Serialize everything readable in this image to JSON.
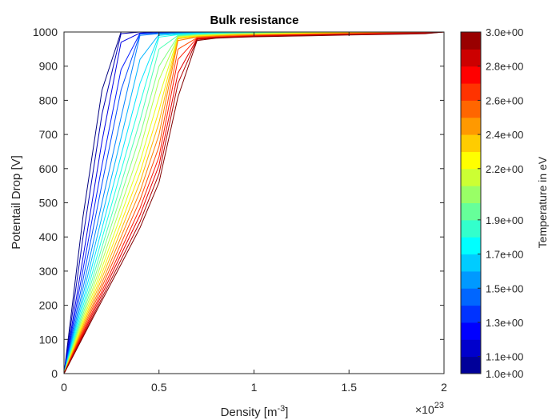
{
  "chart_data": {
    "type": "line",
    "title": "Bulk resistance",
    "xlabel": "Density [m",
    "xlabel_sup": "-3",
    "xlabel_end": "]",
    "x_exponent_base": "×10",
    "x_exponent_power": "23",
    "ylabel": "Potentail Drop [V]",
    "xlim": [
      0,
      2
    ],
    "ylim": [
      0,
      1000
    ],
    "xticks": [
      0,
      0.5,
      1,
      1.5,
      2
    ],
    "xtick_labels": [
      "0",
      "0.5",
      "1",
      "1.5",
      "2"
    ],
    "yticks": [
      0,
      100,
      200,
      300,
      400,
      500,
      600,
      700,
      800,
      900,
      1000
    ],
    "ytick_labels": [
      "0",
      "100",
      "200",
      "300",
      "400",
      "500",
      "600",
      "700",
      "800",
      "900",
      "1000"
    ],
    "grid": false,
    "colorbar": {
      "label": "Temperature in eV",
      "colormap": "jet",
      "range": [
        1.0,
        3.0
      ],
      "levels": 20,
      "ticks": [
        1.0,
        1.1,
        1.3,
        1.5,
        1.7,
        1.9,
        2.2,
        2.4,
        2.6,
        2.8,
        3.0
      ],
      "tick_labels": [
        "1.0e+00",
        "1.1e+00",
        "1.3e+00",
        "1.5e+00",
        "1.7e+00",
        "1.9e+00",
        "2.2e+00",
        "2.4e+00",
        "2.6e+00",
        "2.8e+00",
        "3.0e+00"
      ]
    },
    "x": [
      0,
      0.1,
      0.2,
      0.3,
      0.4,
      0.5,
      0.6,
      0.7,
      0.8,
      0.9,
      1.0,
      1.1,
      1.2,
      1.3,
      1.4,
      1.5,
      1.6,
      1.7,
      1.8,
      1.9,
      2.0
    ],
    "series": [
      {
        "temperature": 1.0,
        "values": [
          0,
          460,
          830,
          1000,
          1000,
          1000,
          1000,
          1000,
          1000,
          1000,
          1000,
          1000,
          1000,
          1000,
          1000,
          1000,
          1000,
          1000,
          1000,
          1000,
          1000
        ]
      },
      {
        "temperature": 1.1,
        "values": [
          0,
          400,
          760,
          995,
          1000,
          1000,
          1000,
          1000,
          1000,
          1000,
          1000,
          1000,
          1000,
          1000,
          1000,
          1000,
          1000,
          1000,
          1000,
          1000,
          1000
        ]
      },
      {
        "temperature": 1.2,
        "values": [
          0,
          340,
          680,
          970,
          997,
          1000,
          1000,
          1000,
          1000,
          1000,
          1000,
          1000,
          1000,
          1000,
          1000,
          1000,
          1000,
          1000,
          1000,
          1000,
          1000
        ]
      },
      {
        "temperature": 1.3,
        "values": [
          0,
          305,
          610,
          890,
          996,
          998,
          999,
          999,
          1000,
          1000,
          1000,
          1000,
          1000,
          1000,
          1000,
          1000,
          1000,
          1000,
          1000,
          1000,
          1000
        ]
      },
      {
        "temperature": 1.4,
        "values": [
          0,
          275,
          555,
          830,
          994,
          997,
          998,
          999,
          999,
          1000,
          1000,
          1000,
          1000,
          1000,
          1000,
          1000,
          1000,
          1000,
          1000,
          1000,
          1000
        ]
      },
      {
        "temperature": 1.5,
        "values": [
          0,
          250,
          500,
          750,
          990,
          995,
          997,
          998,
          999,
          999,
          1000,
          1000,
          1000,
          1000,
          1000,
          1000,
          1000,
          1000,
          1000,
          1000,
          1000
        ]
      },
      {
        "temperature": 1.6,
        "values": [
          0,
          230,
          460,
          690,
          920,
          993,
          996,
          997,
          998,
          999,
          999,
          1000,
          1000,
          1000,
          1000,
          1000,
          1000,
          1000,
          1000,
          1000,
          1000
        ]
      },
      {
        "temperature": 1.7,
        "values": [
          0,
          213,
          425,
          638,
          850,
          990,
          994,
          996,
          997,
          998,
          999,
          999,
          1000,
          1000,
          1000,
          1000,
          1000,
          1000,
          1000,
          1000,
          1000
        ]
      },
      {
        "temperature": 1.8,
        "values": [
          0,
          198,
          395,
          593,
          790,
          985,
          992,
          994,
          996,
          997,
          998,
          999,
          999,
          1000,
          1000,
          1000,
          1000,
          1000,
          1000,
          1000,
          1000
        ]
      },
      {
        "temperature": 1.9,
        "values": [
          0,
          185,
          370,
          555,
          740,
          950,
          990,
          993,
          995,
          996,
          997,
          998,
          999,
          999,
          1000,
          1000,
          1000,
          1000,
          1000,
          1000,
          1000
        ]
      },
      {
        "temperature": 2.0,
        "values": [
          0,
          174,
          348,
          522,
          696,
          900,
          988,
          992,
          994,
          995,
          996,
          997,
          998,
          999,
          999,
          1000,
          1000,
          1000,
          1000,
          1000,
          1000
        ]
      },
      {
        "temperature": 2.1,
        "values": [
          0,
          164,
          328,
          492,
          656,
          860,
          986,
          990,
          992,
          994,
          995,
          996,
          997,
          998,
          999,
          999,
          1000,
          1000,
          1000,
          1000,
          1000
        ]
      },
      {
        "temperature": 2.2,
        "values": [
          0,
          155,
          310,
          465,
          620,
          810,
          985,
          989,
          991,
          993,
          994,
          995,
          996,
          997,
          998,
          999,
          999,
          1000,
          1000,
          1000,
          1000
        ]
      },
      {
        "temperature": 2.3,
        "values": [
          0,
          147,
          294,
          441,
          588,
          770,
          983,
          988,
          990,
          992,
          993,
          994,
          995,
          996,
          997,
          998,
          999,
          999,
          1000,
          1000,
          1000
        ]
      },
      {
        "temperature": 2.4,
        "values": [
          0,
          140,
          280,
          420,
          560,
          735,
          980,
          986,
          989,
          991,
          992,
          993,
          994,
          995,
          996,
          997,
          998,
          999,
          999,
          1000,
          1000
        ]
      },
      {
        "temperature": 2.5,
        "values": [
          0,
          133,
          266,
          400,
          533,
          700,
          975,
          985,
          988,
          990,
          991,
          992,
          993,
          994,
          995,
          996,
          997,
          998,
          999,
          999,
          1000
        ]
      },
      {
        "temperature": 2.6,
        "values": [
          0,
          127,
          254,
          381,
          508,
          665,
          950,
          983,
          986,
          988,
          990,
          991,
          992,
          993,
          994,
          995,
          996,
          997,
          998,
          999,
          1000
        ]
      },
      {
        "temperature": 2.7,
        "values": [
          0,
          121,
          242,
          363,
          484,
          635,
          920,
          982,
          985,
          987,
          989,
          990,
          991,
          992,
          993,
          994,
          995,
          996,
          997,
          998,
          1000
        ]
      },
      {
        "temperature": 2.8,
        "values": [
          0,
          116,
          232,
          348,
          464,
          610,
          880,
          980,
          984,
          986,
          988,
          989,
          990,
          991,
          992,
          993,
          994,
          995,
          996,
          997,
          1000
        ]
      },
      {
        "temperature": 2.9,
        "values": [
          0,
          111,
          222,
          333,
          444,
          585,
          850,
          978,
          983,
          985,
          987,
          988,
          989,
          990,
          991,
          992,
          993,
          994,
          995,
          996,
          1000
        ]
      },
      {
        "temperature": 3.0,
        "values": [
          0,
          107,
          214,
          320,
          427,
          560,
          810,
          975,
          982,
          984,
          986,
          987,
          988,
          989,
          990,
          991,
          992,
          993,
          994,
          995,
          1000
        ]
      }
    ]
  }
}
